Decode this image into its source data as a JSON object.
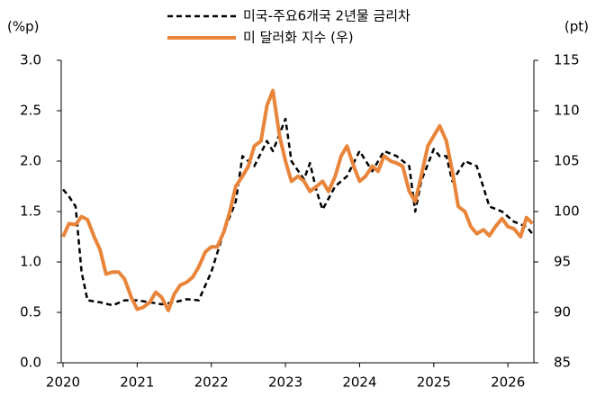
{
  "chart_data": {
    "type": "line",
    "y_label": "(%p)",
    "y2_label": "(pt)",
    "xlim": [
      2020,
      2026.35
    ],
    "xticks": [
      2020,
      2021,
      2022,
      2023,
      2024,
      2025,
      2026
    ],
    "ylim": [
      0,
      3
    ],
    "yticks": [
      {
        "value": 0,
        "label": "0.0"
      },
      0.5,
      {
        "value": 1,
        "label": "1.0"
      },
      1.5,
      {
        "value": 2,
        "label": "2.0"
      },
      2.5,
      {
        "value": 3,
        "label": "3.0"
      }
    ],
    "y2lim": [
      85,
      115
    ],
    "y2ticks": [
      85,
      90,
      95,
      100,
      105,
      110,
      115
    ],
    "legend": "top",
    "series": [
      {
        "name": "미국-주요6개국 2년물 금리차",
        "color": "#000000",
        "dash": true,
        "x": [
          2020.0,
          2020.08,
          2020.17,
          2020.25,
          2020.33,
          2020.5,
          2020.67,
          2020.83,
          2021.0,
          2021.17,
          2021.33,
          2021.5,
          2021.67,
          2021.83,
          2022.0,
          2022.17,
          2022.33,
          2022.42,
          2022.58,
          2022.75,
          2022.83,
          2023.0,
          2023.08,
          2023.25,
          2023.33,
          2023.42,
          2023.5,
          2023.67,
          2023.83,
          2024.0,
          2024.17,
          2024.33,
          2024.5,
          2024.67,
          2024.75,
          2024.83,
          2025.0,
          2025.08,
          2025.17,
          2025.25,
          2025.42,
          2025.58,
          2025.75,
          2025.92,
          2026.08,
          2026.25,
          2026.33
        ],
        "values": [
          1.72,
          1.65,
          1.55,
          0.9,
          0.62,
          0.6,
          0.57,
          0.62,
          0.62,
          0.6,
          0.58,
          0.6,
          0.63,
          0.62,
          0.9,
          1.3,
          1.6,
          2.05,
          1.95,
          2.2,
          2.1,
          2.42,
          2.0,
          1.82,
          1.98,
          1.7,
          1.52,
          1.75,
          1.85,
          2.1,
          1.9,
          2.1,
          2.05,
          1.95,
          1.5,
          1.8,
          2.12,
          2.05,
          2.05,
          1.8,
          2.0,
          1.95,
          1.55,
          1.5,
          1.4,
          1.35,
          1.28
        ]
      },
      {
        "name": "미 달러화 지수 (우)",
        "color": "#e8853a",
        "axis": "y2",
        "x": [
          2020.0,
          2020.08,
          2020.17,
          2020.25,
          2020.33,
          2020.42,
          2020.5,
          2020.58,
          2020.67,
          2020.75,
          2020.83,
          2020.92,
          2021.0,
          2021.08,
          2021.17,
          2021.25,
          2021.33,
          2021.42,
          2021.5,
          2021.58,
          2021.67,
          2021.75,
          2021.83,
          2021.92,
          2022.0,
          2022.08,
          2022.17,
          2022.25,
          2022.33,
          2022.42,
          2022.5,
          2022.58,
          2022.67,
          2022.75,
          2022.83,
          2022.92,
          2023.0,
          2023.08,
          2023.17,
          2023.25,
          2023.33,
          2023.42,
          2023.5,
          2023.58,
          2023.67,
          2023.75,
          2023.83,
          2023.92,
          2024.0,
          2024.08,
          2024.17,
          2024.25,
          2024.33,
          2024.42,
          2024.5,
          2024.58,
          2024.67,
          2024.75,
          2024.83,
          2024.92,
          2025.0,
          2025.08,
          2025.17,
          2025.25,
          2025.33,
          2025.42,
          2025.5,
          2025.58,
          2025.67,
          2025.75,
          2025.83,
          2025.92,
          2026.0,
          2026.08,
          2026.17,
          2026.25,
          2026.33
        ],
        "values": [
          97.5,
          98.8,
          98.7,
          99.5,
          99.2,
          97.5,
          96.2,
          93.8,
          94.0,
          94.0,
          93.3,
          91.5,
          90.3,
          90.5,
          91.0,
          92.0,
          91.5,
          90.2,
          91.8,
          92.7,
          93.0,
          93.5,
          94.5,
          96.0,
          96.5,
          96.5,
          98.0,
          100.0,
          102.5,
          103.5,
          104.5,
          106.5,
          107.0,
          110.5,
          112.0,
          107.5,
          105.0,
          103.0,
          103.5,
          103.0,
          102.0,
          102.5,
          103.0,
          102.0,
          103.5,
          105.5,
          106.5,
          104.5,
          103.0,
          103.5,
          104.5,
          104.0,
          105.5,
          105.0,
          104.8,
          104.5,
          102.0,
          101.0,
          103.5,
          106.5,
          107.5,
          108.5,
          107.0,
          104.0,
          100.5,
          100.0,
          98.5,
          97.8,
          98.2,
          97.6,
          98.5,
          99.3,
          98.5,
          98.3,
          97.5,
          99.4,
          98.8
        ]
      }
    ]
  }
}
